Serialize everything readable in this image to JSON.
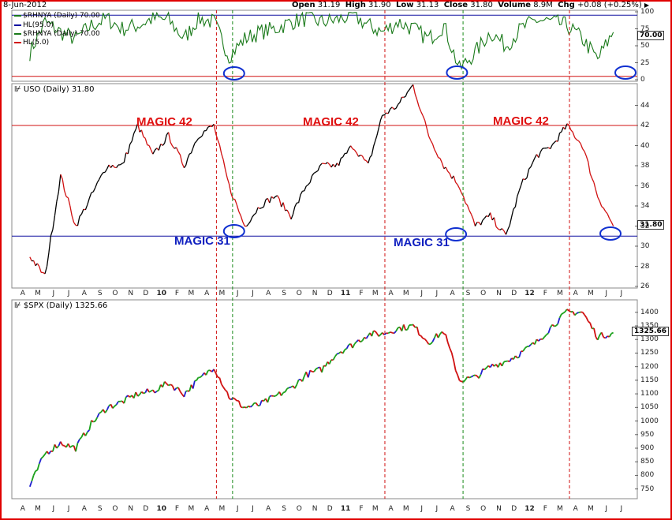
{
  "header": {
    "date": "8-Jun-2012",
    "open_label": "Open",
    "open": "31.19",
    "high_label": "High",
    "high": "31.90",
    "low_label": "Low",
    "low": "31.13",
    "close_label": "Close",
    "close": "31.80",
    "volume_label": "Volume",
    "volume": "8.9M",
    "chg_label": "Chg",
    "chg": "+0.08 (+0.25%)",
    "arrow": "▶"
  },
  "panels": {
    "rhnya": {
      "legend": [
        {
          "label": "$RHNYA (Daily) 70.00",
          "color": "#1a7a1a"
        },
        {
          "label": "HL(95.0)",
          "color": "#1010a0"
        },
        {
          "label": "$RHNYA (Daily) 70.00",
          "color": "#1a7a1a"
        },
        {
          "label": "HL(5.0)",
          "color": "#d01010"
        }
      ],
      "last_value": "70.00"
    },
    "uso": {
      "title": "USO (Daily) 31.80",
      "last_value": "31.80",
      "annotations": {
        "magic42_a": "MAGIC 42",
        "magic42_b": "MAGIC 42",
        "magic42_c": "MAGIC 42",
        "magic31_a": "MAGIC 31",
        "magic31_b": "MAGIC 31"
      }
    },
    "spx": {
      "title": "$SPX (Daily) 1325.66",
      "last_value": "1325.66"
    }
  },
  "colors": {
    "frame": "#e00000",
    "rhnya_line": "#1a7a1a",
    "hl_high": "#1010a0",
    "hl_low": "#d01010",
    "magic42_line": "#d01010",
    "magic31_line": "#1010a0",
    "marker_red": "#d01010",
    "marker_green": "#1a8a1a",
    "circle": "#1030d0",
    "bar_up": "#000000",
    "bar_down": "#d01010",
    "spx_up": "#1aa01a",
    "spx_down": "#d01010",
    "spx_alt": "#2020d0"
  },
  "chart_data": [
    {
      "type": "line",
      "name": "rhnya",
      "ylim": [
        0,
        100
      ],
      "yticks": [
        0,
        25,
        50,
        75,
        100
      ],
      "hlines": [
        95,
        5
      ],
      "x": [
        "2009-04",
        "2009-05",
        "2009-06",
        "2009-07",
        "2009-08",
        "2009-09",
        "2009-10",
        "2009-11",
        "2009-12",
        "2010-01",
        "2010-02",
        "2010-03",
        "2010-04",
        "2010-05",
        "2010-06",
        "2010-07",
        "2010-08",
        "2010-09",
        "2010-10",
        "2010-11",
        "2010-12",
        "2011-01",
        "2011-02",
        "2011-03",
        "2011-04",
        "2011-05",
        "2011-06",
        "2011-07",
        "2011-08",
        "2011-09",
        "2011-10",
        "2011-11",
        "2011-12",
        "2012-01",
        "2012-02",
        "2012-03",
        "2012-04",
        "2012-05",
        "2012-06"
      ],
      "values": [
        40,
        85,
        70,
        60,
        80,
        90,
        75,
        80,
        90,
        88,
        60,
        90,
        85,
        35,
        60,
        70,
        75,
        85,
        90,
        85,
        88,
        95,
        80,
        70,
        85,
        75,
        60,
        80,
        15,
        40,
        70,
        50,
        75,
        88,
        85,
        80,
        60,
        30,
        70
      ]
    },
    {
      "type": "line",
      "name": "uso",
      "ylim": [
        26,
        46
      ],
      "yticks": [
        26,
        28,
        30,
        32,
        34,
        36,
        38,
        40,
        42,
        44
      ],
      "hlines": [
        42,
        31
      ],
      "x": [
        "2009-04",
        "2009-05",
        "2009-06",
        "2009-07",
        "2009-08",
        "2009-09",
        "2009-10",
        "2009-11",
        "2009-12",
        "2010-01",
        "2010-02",
        "2010-03",
        "2010-04",
        "2010-05",
        "2010-06",
        "2010-07",
        "2010-08",
        "2010-09",
        "2010-10",
        "2010-11",
        "2010-12",
        "2011-01",
        "2011-02",
        "2011-03",
        "2011-04",
        "2011-05",
        "2011-06",
        "2011-07",
        "2011-08",
        "2011-09",
        "2011-10",
        "2011-11",
        "2011-12",
        "2012-01",
        "2012-02",
        "2012-03",
        "2012-04",
        "2012-05",
        "2012-06"
      ],
      "values": [
        29,
        27,
        37,
        32,
        35,
        38,
        38,
        42,
        39,
        41,
        38,
        41,
        42,
        36,
        32,
        34,
        35,
        33,
        36,
        38,
        38,
        40,
        38,
        43,
        44,
        46,
        41,
        38,
        36,
        32,
        33,
        31,
        36,
        39,
        40,
        42,
        40,
        35,
        32
      ]
    },
    {
      "type": "line",
      "name": "spx",
      "ylim": [
        720,
        1440
      ],
      "yticks": [
        750,
        800,
        850,
        900,
        950,
        1000,
        1050,
        1100,
        1150,
        1200,
        1250,
        1300,
        1350,
        1400
      ],
      "x": [
        "2009-04",
        "2009-05",
        "2009-06",
        "2009-07",
        "2009-08",
        "2009-09",
        "2009-10",
        "2009-11",
        "2009-12",
        "2010-01",
        "2010-02",
        "2010-03",
        "2010-04",
        "2010-05",
        "2010-06",
        "2010-07",
        "2010-08",
        "2010-09",
        "2010-10",
        "2010-11",
        "2010-12",
        "2011-01",
        "2011-02",
        "2011-03",
        "2011-04",
        "2011-05",
        "2011-06",
        "2011-07",
        "2011-08",
        "2011-09",
        "2011-10",
        "2011-11",
        "2011-12",
        "2012-01",
        "2012-02",
        "2012-03",
        "2012-04",
        "2012-05",
        "2012-06"
      ],
      "values": [
        760,
        880,
        920,
        900,
        990,
        1050,
        1070,
        1100,
        1110,
        1140,
        1100,
        1150,
        1200,
        1090,
        1050,
        1060,
        1090,
        1120,
        1170,
        1190,
        1250,
        1280,
        1320,
        1320,
        1340,
        1350,
        1290,
        1330,
        1150,
        1160,
        1200,
        1220,
        1250,
        1290,
        1350,
        1400,
        1400,
        1310,
        1325
      ]
    }
  ],
  "x_axis": {
    "months": [
      "A",
      "M",
      "J",
      "J",
      "A",
      "S",
      "O",
      "N",
      "D",
      "10",
      "F",
      "M",
      "A",
      "M",
      "J",
      "J",
      "A",
      "S",
      "O",
      "N",
      "D",
      "11",
      "F",
      "M",
      "A",
      "M",
      "J",
      "J",
      "A",
      "S",
      "O",
      "N",
      "D",
      "12",
      "F",
      "M",
      "A",
      "M",
      "J",
      "J"
    ],
    "year_labels": [
      "10",
      "11",
      "12"
    ]
  },
  "markers": {
    "red_dates": [
      "2010-04",
      "2011-03",
      "2012-03"
    ],
    "green_dates": [
      "2010-05",
      "2011-08"
    ]
  }
}
